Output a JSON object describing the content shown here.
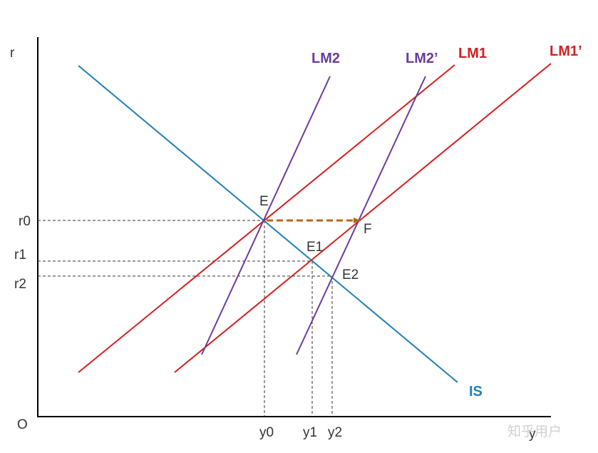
{
  "axes": {
    "y_axis_label": "r",
    "x_axis_label": "y",
    "origin_label": "O"
  },
  "ticks": {
    "r0": "r0",
    "r1": "r1",
    "r2": "r2",
    "y0": "y0",
    "y1": "y1",
    "y2": "y2"
  },
  "points": {
    "E": "E",
    "E1": "E1",
    "E2": "E2",
    "F": "F"
  },
  "curves": {
    "IS": "IS",
    "LM1": "LM1",
    "LM1_prime": "LM1’",
    "LM2": "LM2",
    "LM2_prime": "LM2’"
  },
  "colors": {
    "IS": "#1f7fb8",
    "LM1": "#d41f1f",
    "LM2": "#6a3c9c",
    "arrow": "#b5651d",
    "axis": "#000000"
  },
  "watermark": "知乎用户"
}
